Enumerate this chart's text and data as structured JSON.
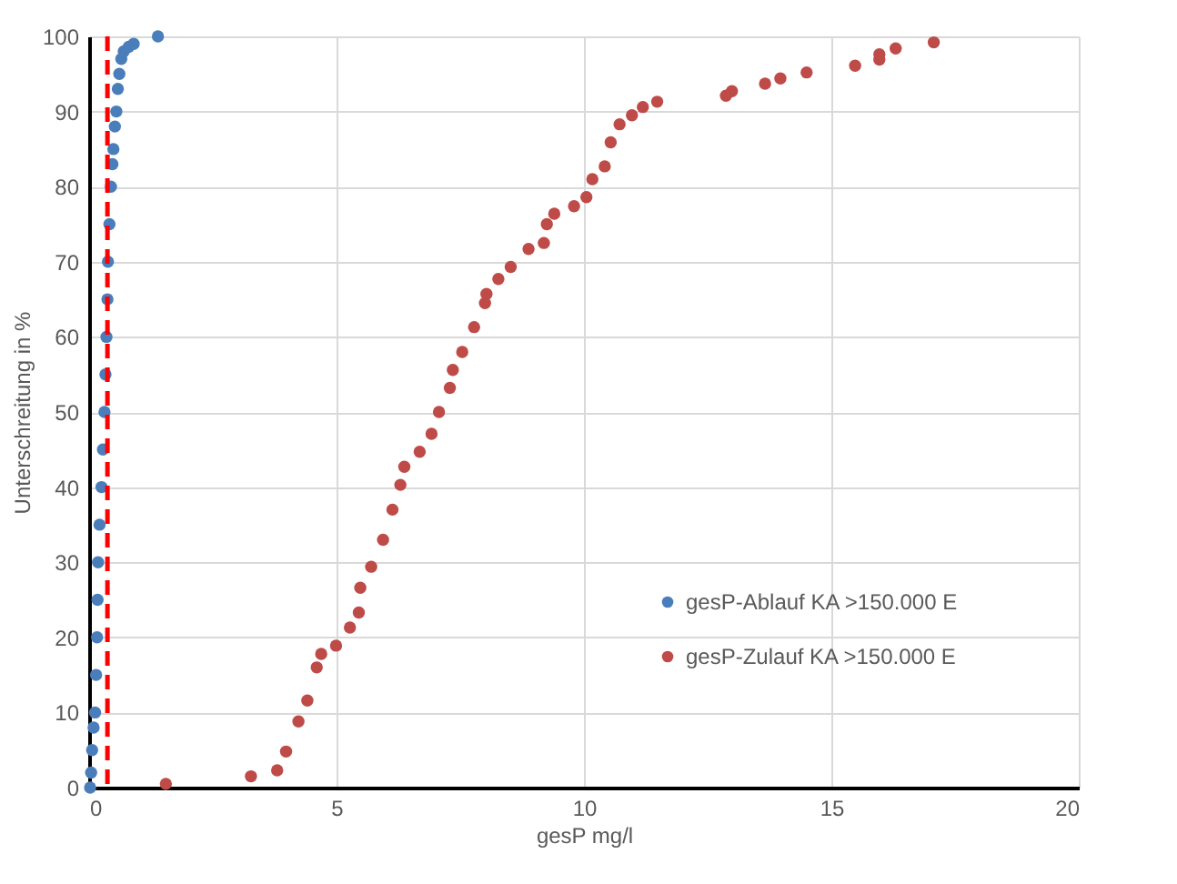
{
  "chart_data": {
    "type": "scatter",
    "xlabel": "gesP mg/l",
    "ylabel": "Unterschreitung in %",
    "xlim": [
      0,
      20
    ],
    "xticks": [
      0,
      5,
      10,
      15,
      20
    ],
    "ylim": [
      0,
      100
    ],
    "yticks": [
      0,
      10,
      20,
      30,
      40,
      50,
      60,
      70,
      80,
      90,
      100
    ],
    "grid": true,
    "legend": "bottom right",
    "marker": "circle",
    "series": [
      {
        "name": "gesP-Ablauf KA >150.000 E",
        "color": "#4a7ebb",
        "x": [
          0.02,
          0.04,
          0.06,
          0.09,
          0.12,
          0.14,
          0.16,
          0.17,
          0.18,
          0.21,
          0.25,
          0.28,
          0.31,
          0.33,
          0.35,
          0.37,
          0.38,
          0.41,
          0.44,
          0.47,
          0.49,
          0.52,
          0.55,
          0.58,
          0.61,
          0.65,
          0.7,
          0.8,
          0.9,
          1.39
        ],
        "values": [
          0,
          2,
          5,
          8,
          10,
          15,
          20,
          25,
          30,
          35,
          40,
          45,
          50,
          55,
          60,
          65,
          70,
          75,
          80,
          83,
          85,
          88,
          90,
          93,
          95,
          97,
          98,
          98.6,
          99,
          100
        ]
      },
      {
        "name": "gesP-Zulauf KA >150.000 E",
        "color": "#be4b48",
        "x": [
          1.55,
          3.27,
          3.8,
          3.98,
          4.23,
          4.41,
          4.6,
          4.69,
          4.99,
          5.27,
          5.45,
          5.48,
          5.7,
          5.94,
          6.13,
          6.29,
          6.37,
          6.68,
          6.92,
          7.07,
          7.29,
          7.35,
          7.54,
          7.78,
          8.0,
          8.03,
          8.27,
          8.52,
          8.88,
          9.19,
          9.25,
          9.4,
          9.8,
          10.05,
          10.17,
          10.42,
          10.54,
          10.72,
          10.97,
          11.19,
          11.48,
          12.87,
          12.99,
          13.66,
          13.97,
          14.5,
          15.48,
          15.97,
          15.97,
          16.3,
          17.07
        ],
        "values": [
          0.5,
          1.5,
          2.3,
          4.8,
          8.8,
          11.6,
          16,
          17.8,
          18.9,
          21.3,
          23.3,
          26.6,
          29.4,
          33,
          37,
          40.3,
          42.7,
          44.7,
          47.1,
          50,
          53.2,
          55.6,
          58,
          61.3,
          64.5,
          65.7,
          67.7,
          69.3,
          71.7,
          72.5,
          75,
          76.4,
          77.4,
          78.6,
          81,
          82.7,
          85.9,
          88.3,
          89.5,
          90.6,
          91.3,
          92.1,
          92.7,
          93.7,
          94.4,
          95.2,
          96.1,
          96.9,
          97.6,
          98.4,
          99.2
        ]
      }
    ],
    "ref_lines": [
      {
        "axis": "x",
        "value": 0.37,
        "color": "#ff0000",
        "line_style": "dashed"
      }
    ]
  }
}
